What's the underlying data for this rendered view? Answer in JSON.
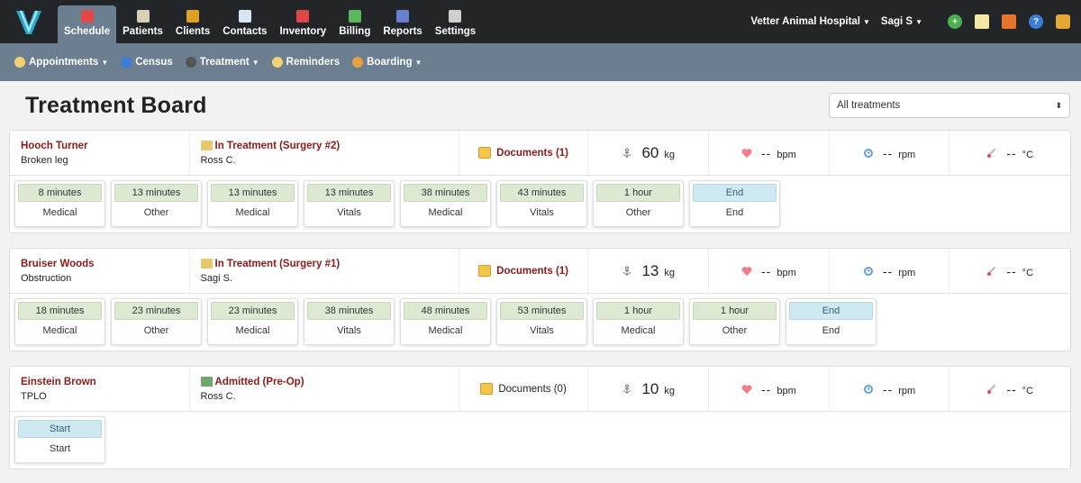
{
  "nav": {
    "items": [
      {
        "label": "Schedule",
        "icon": "calendar-icon",
        "active": true
      },
      {
        "label": "Patients",
        "icon": "patient-icon"
      },
      {
        "label": "Clients",
        "icon": "client-icon"
      },
      {
        "label": "Contacts",
        "icon": "contacts-icon"
      },
      {
        "label": "Inventory",
        "icon": "pill-icon"
      },
      {
        "label": "Billing",
        "icon": "money-icon"
      },
      {
        "label": "Reports",
        "icon": "chart-icon"
      },
      {
        "label": "Settings",
        "icon": "gear-icon"
      }
    ],
    "hospital": "Vetter Animal Hospital",
    "user": "Sagi S"
  },
  "subnav": {
    "items": [
      {
        "label": "Appointments",
        "icon": "alarm-clock-icon",
        "dropdown": true
      },
      {
        "label": "Census",
        "icon": "census-icon",
        "dropdown": false
      },
      {
        "label": "Treatment",
        "icon": "stethoscope-icon",
        "dropdown": true
      },
      {
        "label": "Reminders",
        "icon": "alarm-clock-icon",
        "dropdown": false
      },
      {
        "label": "Boarding",
        "icon": "house-icon",
        "dropdown": true
      }
    ]
  },
  "page": {
    "title": "Treatment Board",
    "filter_value": "All treatments"
  },
  "patients": [
    {
      "name": "Hooch Turner",
      "reason": "Broken leg",
      "status": "In Treatment (Surgery #2)",
      "doctor": "Ross C.",
      "documents": "Documents (1)",
      "docs_highlight": true,
      "weight": "60",
      "weight_unit": "kg",
      "hr": "--",
      "hr_unit": "bpm",
      "rr": "--",
      "rr_unit": "rpm",
      "temp": "--",
      "temp_unit": "°C",
      "steps": [
        {
          "time": "8 minutes",
          "label": "Medical"
        },
        {
          "time": "13 minutes",
          "label": "Other"
        },
        {
          "time": "13 minutes",
          "label": "Medical"
        },
        {
          "time": "13 minutes",
          "label": "Vitals"
        },
        {
          "time": "38 minutes",
          "label": "Medical"
        },
        {
          "time": "43 minutes",
          "label": "Vitals"
        },
        {
          "time": "1 hour",
          "label": "Other"
        },
        {
          "time": "End",
          "label": "End",
          "end": true
        }
      ]
    },
    {
      "name": "Bruiser Woods",
      "reason": "Obstruction",
      "status": "In Treatment (Surgery #1)",
      "doctor": "Sagi S.",
      "documents": "Documents (1)",
      "docs_highlight": true,
      "weight": "13",
      "weight_unit": "kg",
      "hr": "--",
      "hr_unit": "bpm",
      "rr": "--",
      "rr_unit": "rpm",
      "temp": "--",
      "temp_unit": "°C",
      "steps": [
        {
          "time": "18 minutes",
          "label": "Medical"
        },
        {
          "time": "23 minutes",
          "label": "Other"
        },
        {
          "time": "23 minutes",
          "label": "Medical"
        },
        {
          "time": "38 minutes",
          "label": "Vitals"
        },
        {
          "time": "48 minutes",
          "label": "Medical"
        },
        {
          "time": "53 minutes",
          "label": "Vitals"
        },
        {
          "time": "1 hour",
          "label": "Medical"
        },
        {
          "time": "1 hour",
          "label": "Other"
        },
        {
          "time": "End",
          "label": "End",
          "end": true
        }
      ]
    },
    {
      "name": "Einstein Brown",
      "reason": "TPLO",
      "status": "Admitted (Pre-Op)",
      "doctor": "Ross C.",
      "documents": "Documents (0)",
      "docs_highlight": false,
      "weight": "10",
      "weight_unit": "kg",
      "hr": "--",
      "hr_unit": "bpm",
      "rr": "--",
      "rr_unit": "rpm",
      "temp": "--",
      "temp_unit": "°C",
      "steps": [
        {
          "time": "Start",
          "label": "Start",
          "end": true
        }
      ]
    }
  ],
  "colors": {
    "topbar": "#222628",
    "subbar": "#6b7f90",
    "accent_red": "#8b1a1a",
    "step_green": "#dde9d2",
    "step_blue": "#cfe9f0"
  }
}
